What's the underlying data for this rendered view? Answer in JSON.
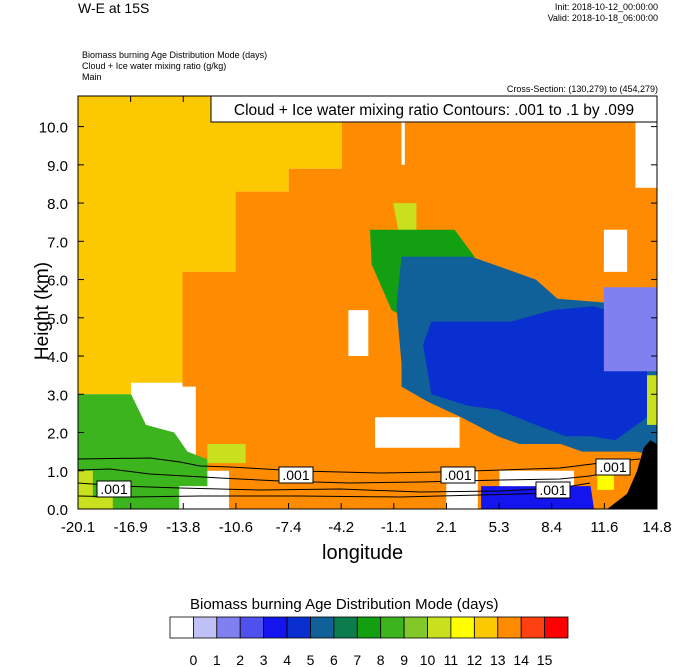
{
  "header": {
    "title": "W-E at 15S",
    "init": "Init: 2018-10-12_00:00:00",
    "valid": "Valid: 2018-10-18_06:00:00",
    "fields": [
      "Biomass burning Age Distribution Mode   (days)",
      "Cloud + Ice water mixing ratio   (g/kg)",
      "Main"
    ],
    "cross_section": "Cross-Section: (130,279) to (454,279)"
  },
  "chart_data": {
    "type": "heatmap",
    "title": "W-E at 15S",
    "xlabel": "longitude",
    "ylabel": "Height (km)",
    "x_ticks": [
      "-20.1",
      "-16.9",
      "-13.8",
      "-10.6",
      "-7.4",
      "-4.2",
      "-1.1",
      "2.1",
      "5.3",
      "8.4",
      "11.6",
      "14.8"
    ],
    "y_ticks": [
      "0.0",
      "1.0",
      "2.0",
      "3.0",
      "4.0",
      "5.0",
      "6.0",
      "7.0",
      "8.0",
      "9.0",
      "10.0"
    ],
    "xlim": [
      -20.1,
      14.8
    ],
    "ylim": [
      0,
      10.8
    ],
    "contour_annotation": "Cloud + Ice water mixing ratio Contours: .001 to .1 by .099",
    "contour_labels": [
      ".001",
      ".001",
      ".001",
      ".001",
      ".001"
    ],
    "colorbar": {
      "title": "Biomass burning Age Distribution Mode  (days)",
      "labels": [
        "0",
        "1",
        "2",
        "3",
        "4",
        "5",
        "6",
        "7",
        "8",
        "9",
        "10",
        "11",
        "12",
        "13",
        "14",
        "15"
      ],
      "colors": [
        "#ffffff",
        "#c0c0f8",
        "#8080f0",
        "#5050ef",
        "#1414ee",
        "#0a2fd0",
        "#10609a",
        "#0c7c4c",
        "#12a012",
        "#3cb41e",
        "#82c828",
        "#c8e01e",
        "#ffff00",
        "#fcc800",
        "#ff8c00",
        "#ff4010",
        "#ff0000"
      ]
    },
    "regions": [
      {
        "name": "age-13",
        "color": "#fcc800",
        "rings": [
          [
            [
              -20.1,
              10.8
            ],
            [
              -4.2,
              10.8
            ],
            [
              -4.2,
              8.9
            ],
            [
              -7.4,
              8.9
            ],
            [
              -7.4,
              8.3
            ],
            [
              -10.6,
              8.3
            ],
            [
              -10.6,
              6.2
            ],
            [
              -13.8,
              6.2
            ],
            [
              -13.8,
              3.3
            ],
            [
              -16.9,
              3.3
            ],
            [
              -16.9,
              3.0
            ],
            [
              -20.1,
              3.0
            ]
          ]
        ]
      },
      {
        "name": "age-14",
        "color": "#ff8c00",
        "rings": [
          [
            [
              -4.2,
              10.8
            ],
            [
              14.8,
              10.8
            ],
            [
              14.8,
              0
            ],
            [
              -11.0,
              0
            ],
            [
              -11.0,
              1.0
            ],
            [
              -13.0,
              1.0
            ],
            [
              -13.0,
              3.2
            ],
            [
              -13.8,
              3.2
            ],
            [
              -13.8,
              6.2
            ],
            [
              -10.6,
              6.2
            ],
            [
              -10.6,
              8.3
            ],
            [
              -7.4,
              8.3
            ],
            [
              -7.4,
              8.9
            ],
            [
              -4.2,
              8.9
            ]
          ]
        ]
      },
      {
        "name": "age-9-green",
        "color": "#3cb41e",
        "rings": [
          [
            [
              -20.1,
              3.0
            ],
            [
              -16.9,
              3.0
            ],
            [
              -16.0,
              2.2
            ],
            [
              -14.3,
              2.0
            ],
            [
              -13.5,
              1.5
            ],
            [
              -12.3,
              1.3
            ],
            [
              -12.3,
              0.6
            ],
            [
              -14.0,
              0.6
            ],
            [
              -14.0,
              0
            ],
            [
              -20.1,
              0
            ]
          ]
        ]
      },
      {
        "name": "age-11-upper",
        "color": "#c8e01e",
        "rings": [
          [
            [
              -1.1,
              8.0
            ],
            [
              0.3,
              8.0
            ],
            [
              0.3,
              7.2
            ],
            [
              -0.8,
              7.3
            ]
          ],
          [
            [
              -12.3,
              1.7
            ],
            [
              -10.0,
              1.7
            ],
            [
              -10.0,
              1.2
            ],
            [
              -12.3,
              1.2
            ]
          ],
          [
            [
              -20.1,
              1.0
            ],
            [
              -19.2,
              1.0
            ],
            [
              -19.2,
              0.3
            ],
            [
              -18.0,
              0.3
            ],
            [
              -18.0,
              0
            ],
            [
              -20.1,
              0
            ]
          ]
        ]
      },
      {
        "name": "age-8",
        "color": "#12a012",
        "rings": [
          [
            [
              -2.5,
              7.3
            ],
            [
              2.6,
              7.3
            ],
            [
              3.8,
              6.6
            ],
            [
              4.0,
              4.9
            ],
            [
              2.6,
              4.6
            ],
            [
              0.5,
              4.8
            ],
            [
              -1.2,
              5.2
            ],
            [
              -2.4,
              6.4
            ]
          ]
        ]
      },
      {
        "name": "age-6",
        "color": "#10609a",
        "rings": [
          [
            [
              -0.6,
              6.6
            ],
            [
              3.6,
              6.6
            ],
            [
              7.5,
              6.0
            ],
            [
              8.8,
              5.5
            ],
            [
              11.6,
              5.4
            ],
            [
              13.0,
              5.3
            ],
            [
              14.8,
              5.1
            ],
            [
              14.8,
              1.4
            ],
            [
              13.5,
              1.5
            ],
            [
              10.3,
              1.5
            ],
            [
              9.0,
              1.7
            ],
            [
              6.5,
              1.7
            ],
            [
              5.2,
              1.9
            ],
            [
              3.0,
              2.4
            ],
            [
              1.0,
              2.8
            ],
            [
              -0.6,
              3.2
            ],
            [
              -0.6,
              3.8
            ],
            [
              -0.9,
              5.3
            ]
          ]
        ]
      },
      {
        "name": "age-5",
        "color": "#0a2fd0",
        "rings": [
          [
            [
              1.2,
              4.9
            ],
            [
              6.0,
              4.9
            ],
            [
              8.5,
              5.2
            ],
            [
              11.0,
              5.3
            ],
            [
              13.2,
              5.0
            ],
            [
              14.2,
              4.5
            ],
            [
              14.2,
              2.4
            ],
            [
              12.3,
              1.8
            ],
            [
              10.8,
              1.9
            ],
            [
              9.3,
              1.9
            ],
            [
              7.5,
              2.2
            ],
            [
              5.2,
              2.6
            ],
            [
              3.4,
              2.7
            ],
            [
              1.2,
              3.0
            ],
            [
              0.7,
              4.3
            ]
          ]
        ]
      },
      {
        "name": "age-4-lower",
        "color": "#1414ee",
        "rings": [
          [
            [
              4.2,
              0.6
            ],
            [
              10.8,
              0.6
            ],
            [
              11.0,
              0
            ],
            [
              4.2,
              0
            ]
          ]
        ]
      },
      {
        "name": "age-2",
        "color": "#8080f0",
        "rings": [
          [
            [
              11.6,
              5.8
            ],
            [
              14.8,
              5.8
            ],
            [
              14.8,
              3.6
            ],
            [
              11.6,
              3.6
            ]
          ]
        ]
      },
      {
        "name": "age-11-right",
        "color": "#c8e01e",
        "rings": [
          [
            [
              14.2,
              3.5
            ],
            [
              14.8,
              3.5
            ],
            [
              14.8,
              2.2
            ],
            [
              14.2,
              2.2
            ]
          ]
        ]
      },
      {
        "name": "age-0",
        "color": "#ffffff",
        "rings": [
          [
            [
              13.5,
              10.3
            ],
            [
              14.8,
              10.3
            ],
            [
              14.8,
              8.4
            ],
            [
              13.5,
              8.4
            ]
          ],
          [
            [
              -0.6,
              10.5
            ],
            [
              -0.4,
              10.5
            ],
            [
              -0.4,
              9.0
            ],
            [
              -0.6,
              9.0
            ]
          ],
          [
            [
              11.6,
              7.3
            ],
            [
              13.0,
              7.3
            ],
            [
              13.0,
              6.2
            ],
            [
              11.6,
              6.2
            ]
          ],
          [
            [
              -3.8,
              5.2
            ],
            [
              -2.6,
              5.2
            ],
            [
              -2.6,
              4.0
            ],
            [
              -3.8,
              4.0
            ]
          ],
          [
            [
              -2.2,
              2.4
            ],
            [
              2.9,
              2.4
            ],
            [
              2.9,
              1.6
            ],
            [
              -2.2,
              1.6
            ]
          ],
          [
            [
              2.1,
              1.0
            ],
            [
              4.0,
              1.0
            ],
            [
              4.0,
              0
            ],
            [
              2.1,
              0
            ]
          ],
          [
            [
              5.3,
              1.0
            ],
            [
              9.8,
              1.0
            ],
            [
              9.8,
              0.6
            ],
            [
              5.3,
              0.6
            ]
          ]
        ]
      },
      {
        "name": "age-12-lower",
        "color": "#ffff00",
        "rings": [
          [
            [
              11.2,
              1.1
            ],
            [
              12.2,
              1.1
            ],
            [
              12.2,
              0.5
            ],
            [
              11.2,
              0.5
            ]
          ]
        ]
      },
      {
        "name": "terrain",
        "color": "#000000",
        "rings": [
          [
            [
              11.8,
              0
            ],
            [
              13.0,
              0.4
            ],
            [
              13.6,
              1.0
            ],
            [
              14.0,
              1.6
            ],
            [
              14.4,
              1.8
            ],
            [
              14.8,
              1.7
            ],
            [
              14.8,
              0
            ]
          ]
        ]
      }
    ]
  }
}
